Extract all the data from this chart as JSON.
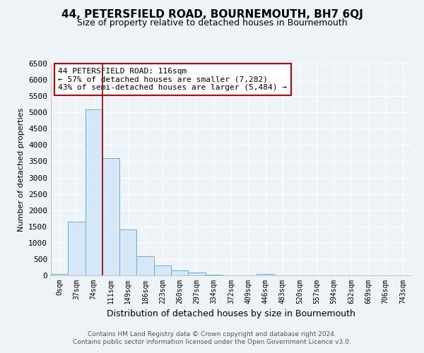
{
  "title1": "44, PETERSFIELD ROAD, BOURNEMOUTH, BH7 6QJ",
  "title2": "Size of property relative to detached houses in Bournemouth",
  "xlabel": "Distribution of detached houses by size in Bournemouth",
  "ylabel": "Number of detached properties",
  "bin_labels": [
    "0sqm",
    "37sqm",
    "74sqm",
    "111sqm",
    "149sqm",
    "186sqm",
    "223sqm",
    "260sqm",
    "297sqm",
    "334sqm",
    "372sqm",
    "409sqm",
    "446sqm",
    "483sqm",
    "520sqm",
    "557sqm",
    "594sqm",
    "632sqm",
    "669sqm",
    "706sqm",
    "743sqm"
  ],
  "bar_heights": [
    50,
    1650,
    5100,
    3600,
    1400,
    580,
    300,
    150,
    80,
    30,
    10,
    5,
    50,
    0,
    0,
    0,
    0,
    0,
    0,
    0,
    0
  ],
  "bar_color": "#d6e8f7",
  "bar_edge_color": "#6aaed6",
  "red_line_x": 2.5,
  "red_line_color": "#990000",
  "annotation_title": "44 PETERSFIELD ROAD: 116sqm",
  "annotation_line1": "← 57% of detached houses are smaller (7,282)",
  "annotation_line2": "43% of semi-detached houses are larger (5,484) →",
  "annotation_box_color": "white",
  "annotation_box_edge": "#cc0000",
  "ylim": [
    0,
    6500
  ],
  "yticks": [
    0,
    500,
    1000,
    1500,
    2000,
    2500,
    3000,
    3500,
    4000,
    4500,
    5000,
    5500,
    6000,
    6500
  ],
  "footer1": "Contains HM Land Registry data © Crown copyright and database right 2024.",
  "footer2": "Contains public sector information licensed under the Open Government Licence v3.0.",
  "bg_color": "#eef3f8",
  "grid_color": "white",
  "title1_fontsize": 11,
  "title2_fontsize": 9
}
